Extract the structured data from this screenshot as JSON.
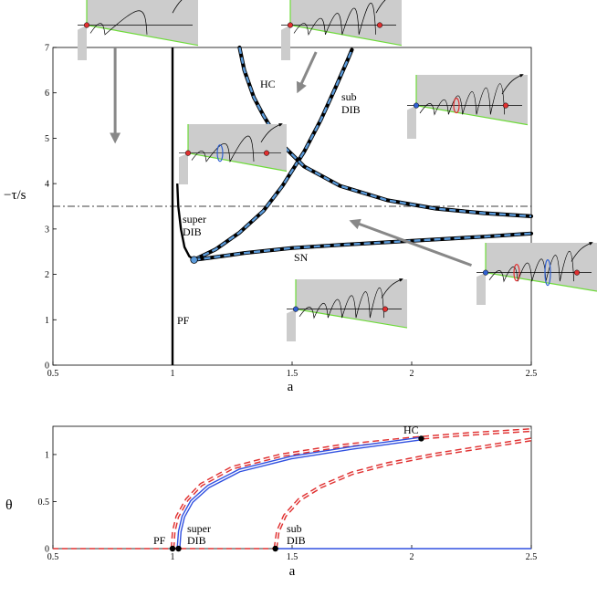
{
  "chart_data": [
    {
      "type": "line",
      "xlabel": "a",
      "ylabel": "−τ/s",
      "xlim": [
        0.5,
        2.5
      ],
      "ylim": [
        0,
        7
      ],
      "x_ticks": [
        "0.5",
        "1",
        "1.5",
        "2",
        "2.5"
      ],
      "y_ticks": [
        "0",
        "1",
        "2",
        "3",
        "4",
        "5",
        "6",
        "7"
      ],
      "curve_labels": {
        "hc": "HC",
        "sub": [
          "sub",
          "DIB"
        ],
        "super": [
          "super",
          "DIB"
        ],
        "sn": "SN",
        "pf": "PF"
      },
      "reference_line_y": 3.5,
      "dib_point": [
        1.09,
        2.32
      ],
      "series": [
        {
          "key": "pf",
          "points": [
            [
              1.0,
              0.0
            ],
            [
              1.0,
              7.0
            ]
          ]
        },
        {
          "key": "super_dib",
          "points": [
            [
              1.02,
              4.0
            ],
            [
              1.024,
              3.5
            ],
            [
              1.035,
              3.0
            ],
            [
              1.05,
              2.6
            ],
            [
              1.07,
              2.4
            ],
            [
              1.09,
              2.32
            ]
          ]
        },
        {
          "key": "sub_dib",
          "points": [
            [
              1.09,
              2.32
            ],
            [
              1.18,
              2.55
            ],
            [
              1.28,
              2.92
            ],
            [
              1.38,
              3.4
            ],
            [
              1.46,
              3.95
            ],
            [
              1.55,
              4.7
            ],
            [
              1.62,
              5.4
            ],
            [
              1.68,
              6.1
            ],
            [
              1.73,
              6.7
            ],
            [
              1.75,
              6.95
            ]
          ]
        },
        {
          "key": "hc",
          "points": [
            [
              1.28,
              7.0
            ],
            [
              1.3,
              6.5
            ],
            [
              1.34,
              5.9
            ],
            [
              1.38,
              5.5
            ],
            [
              1.45,
              4.9
            ],
            [
              1.55,
              4.38
            ],
            [
              1.7,
              3.95
            ],
            [
              1.9,
              3.63
            ],
            [
              2.1,
              3.45
            ],
            [
              2.3,
              3.35
            ],
            [
              2.5,
              3.28
            ]
          ]
        },
        {
          "key": "sn",
          "points": [
            [
              1.09,
              2.32
            ],
            [
              1.15,
              2.36
            ],
            [
              1.3,
              2.47
            ],
            [
              1.5,
              2.58
            ],
            [
              1.7,
              2.65
            ],
            [
              2.0,
              2.74
            ],
            [
              2.3,
              2.83
            ],
            [
              2.5,
              2.9
            ]
          ]
        }
      ],
      "arrows": [
        {
          "from": [
            0.76,
            7.0
          ],
          "to": [
            0.76,
            5.0
          ]
        },
        {
          "from": [
            1.6,
            6.9
          ],
          "to": [
            1.53,
            6.1
          ]
        },
        {
          "from": [
            2.25,
            2.2
          ],
          "to": [
            1.76,
            3.15
          ]
        }
      ],
      "insets": [
        {
          "id": "inset-top-left",
          "at": [
            0.78,
            7.28
          ]
        },
        {
          "id": "inset-top-mid",
          "at": [
            1.7,
            7.28
          ]
        },
        {
          "id": "inset-right-mid",
          "at": [
            2.22,
            5.65
          ]
        },
        {
          "id": "inset-center",
          "at": [
            1.28,
            4.7
          ]
        },
        {
          "id": "inset-right-low",
          "at": [
            2.6,
            2.0
          ]
        },
        {
          "id": "inset-bottom",
          "at": [
            1.68,
            1.2
          ]
        }
      ]
    },
    {
      "type": "line",
      "xlabel": "a",
      "ylabel": "θ",
      "xlim": [
        0.5,
        2.5
      ],
      "ylim": [
        0,
        1.3
      ],
      "x_ticks": [
        "0.5",
        "1",
        "1.5",
        "2",
        "2.5"
      ],
      "y_ticks": [
        "0",
        "0.5",
        "1"
      ],
      "point_labels": {
        "pf": "PF",
        "super": [
          "super",
          "DIB"
        ],
        "sub": [
          "sub",
          "DIB"
        ],
        "hc": "HC"
      },
      "markers": [
        [
          1.0,
          0.0
        ],
        [
          1.025,
          0.0
        ],
        [
          1.43,
          0.0
        ],
        [
          2.04,
          1.17
        ]
      ],
      "series": [
        {
          "key": "zero_unstable",
          "style": "red-dashed",
          "points": [
            [
              0.5,
              0.0
            ],
            [
              1.43,
              0.0
            ]
          ]
        },
        {
          "key": "zero_stable",
          "style": "blue",
          "points": [
            [
              1.43,
              0.0
            ],
            [
              2.5,
              0.0
            ]
          ]
        },
        {
          "key": "branch_upper_unstable",
          "style": "red-double-dashed",
          "points": [
            [
              1.0,
              0.0
            ],
            [
              1.005,
              0.18
            ],
            [
              1.02,
              0.34
            ],
            [
              1.06,
              0.52
            ],
            [
              1.12,
              0.68
            ],
            [
              1.25,
              0.86
            ],
            [
              1.45,
              0.99
            ],
            [
              1.7,
              1.09
            ],
            [
              2.0,
              1.17
            ],
            [
              2.25,
              1.22
            ],
            [
              2.5,
              1.26
            ]
          ]
        },
        {
          "key": "branch_upper_stable",
          "style": "blue-double",
          "points": [
            [
              1.025,
              0.0
            ],
            [
              1.03,
              0.18
            ],
            [
              1.045,
              0.34
            ],
            [
              1.08,
              0.5
            ],
            [
              1.15,
              0.66
            ],
            [
              1.28,
              0.83
            ],
            [
              1.5,
              0.97
            ],
            [
              1.75,
              1.07
            ],
            [
              2.04,
              1.17
            ]
          ]
        },
        {
          "key": "branch_lower_unstable",
          "style": "red-double-dashed",
          "points": [
            [
              1.43,
              0.0
            ],
            [
              1.44,
              0.18
            ],
            [
              1.47,
              0.35
            ],
            [
              1.53,
              0.52
            ],
            [
              1.62,
              0.66
            ],
            [
              1.75,
              0.8
            ],
            [
              1.9,
              0.9
            ],
            [
              2.1,
              1.0
            ],
            [
              2.3,
              1.08
            ],
            [
              2.5,
              1.16
            ]
          ]
        }
      ]
    }
  ]
}
